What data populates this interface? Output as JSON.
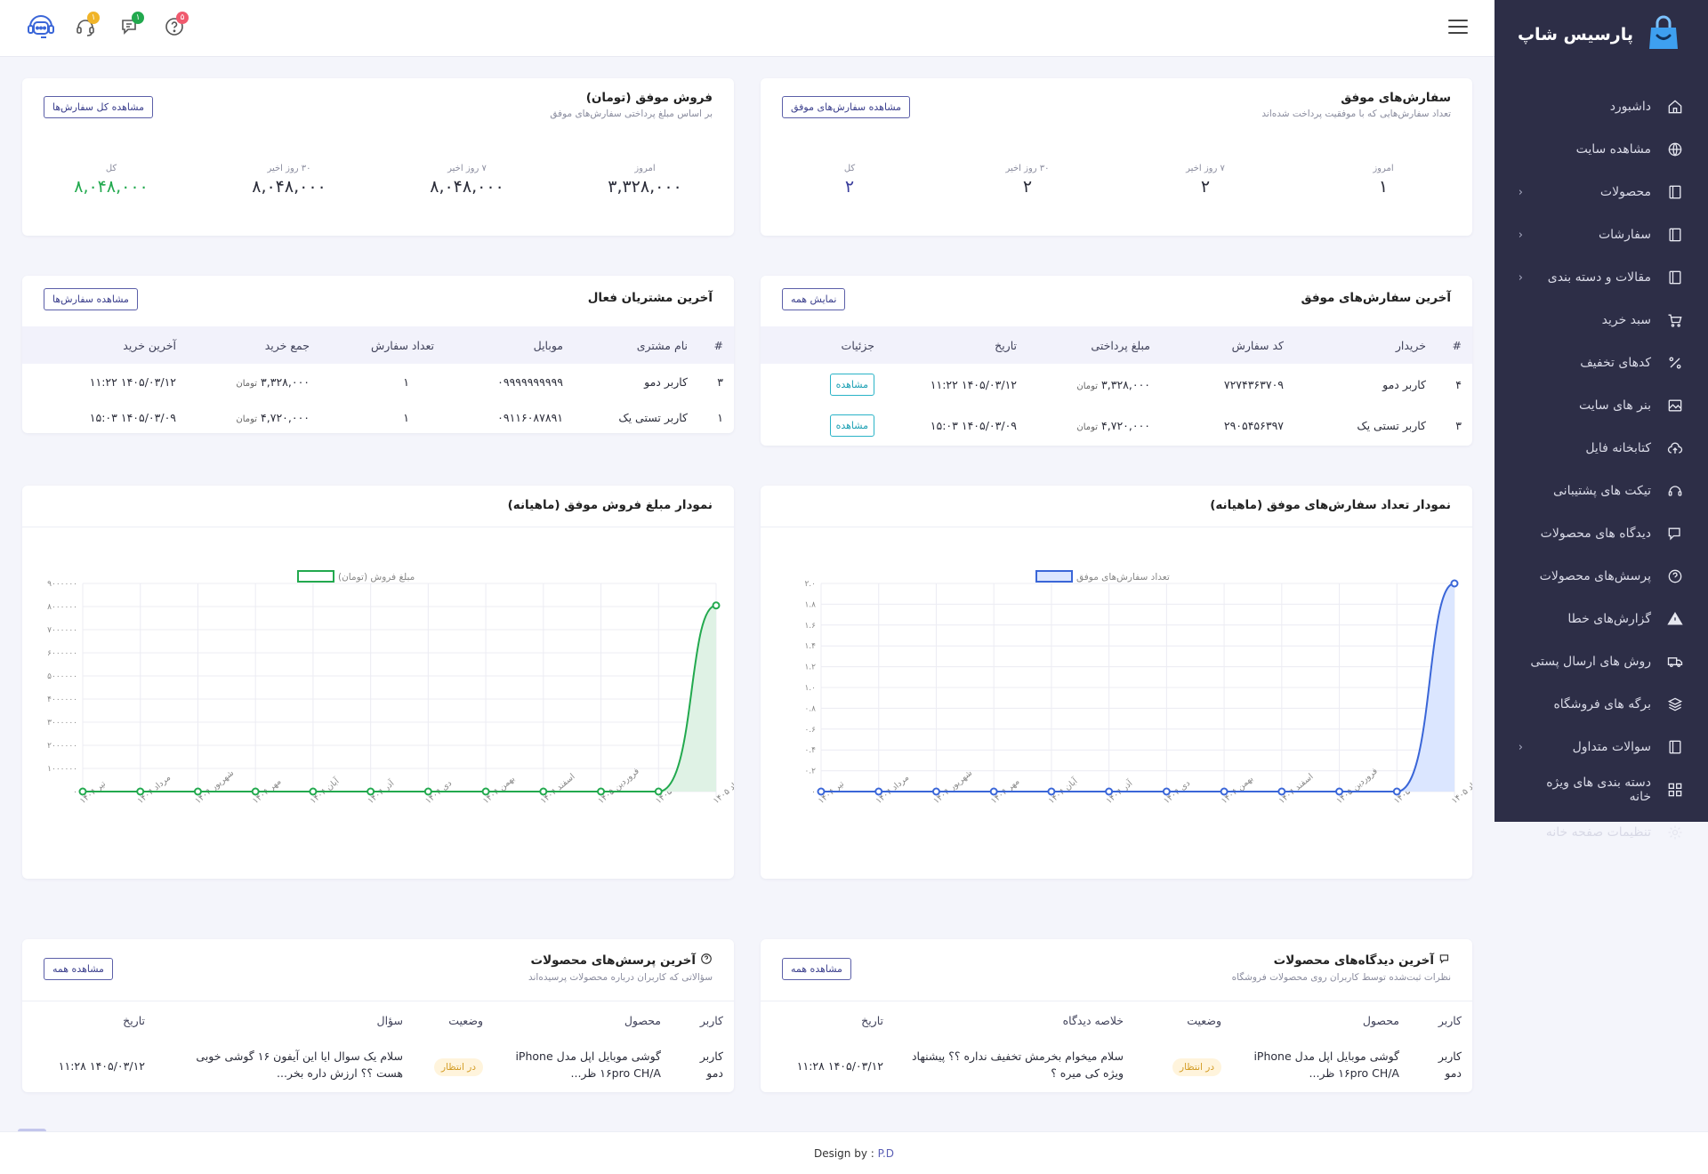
{
  "brand": {
    "name": "پارسیس شاپ"
  },
  "colors": {
    "sidebar": "#2d2e47",
    "accent": "#5b5fa8",
    "green": "#22a94e",
    "blue": "#3a66d8"
  },
  "topbar": {
    "badges": [
      "۱",
      "۱",
      "۵"
    ]
  },
  "sidebar": {
    "items": [
      {
        "label": "داشبورد",
        "icon": "home-icon",
        "chevron": false
      },
      {
        "label": "مشاهده سایت",
        "icon": "globe-icon",
        "chevron": false
      },
      {
        "label": "محصولات",
        "icon": "book-icon",
        "chevron": true
      },
      {
        "label": "سفارشات",
        "icon": "book-icon",
        "chevron": true
      },
      {
        "label": "مقالات و دسته بندی",
        "icon": "book-icon",
        "chevron": true
      },
      {
        "label": "سبد خرید",
        "icon": "cart-icon",
        "chevron": false
      },
      {
        "label": "کدهای تخفیف",
        "icon": "percent-icon",
        "chevron": false
      },
      {
        "label": "بنر های سایت",
        "icon": "image-icon",
        "chevron": false
      },
      {
        "label": "کتابخانه فایل",
        "icon": "cloud-upload-icon",
        "chevron": false
      },
      {
        "label": "تیکت های پشتیبانی",
        "icon": "headset-icon",
        "chevron": false
      },
      {
        "label": "دیدگاه های محصولات",
        "icon": "comment-icon",
        "chevron": false
      },
      {
        "label": "پرسش‌های محصولات",
        "icon": "question-icon",
        "chevron": false
      },
      {
        "label": "گزارش‌های خطا",
        "icon": "warning-icon",
        "chevron": false
      },
      {
        "label": "روش های ارسال پستی",
        "icon": "truck-icon",
        "chevron": false
      },
      {
        "label": "برگه های فروشگاه",
        "icon": "layers-icon",
        "chevron": false
      },
      {
        "label": "سوالات متداول",
        "icon": "book-icon",
        "chevron": true
      },
      {
        "label": "دسته بندی های ویژه خانه",
        "icon": "grid-icon",
        "chevron": false
      },
      {
        "label": "تنظیمات صفحه خانه",
        "icon": "gear-icon",
        "chevron": false
      }
    ]
  },
  "orders_summary": {
    "title": "سفارش‌های موفق",
    "subtitle": "تعداد سفارش‌هایی که با موفقیت پرداخت شده‌اند",
    "button": "مشاهده سفارش‌های موفق",
    "stats": [
      {
        "label": "امروز",
        "value": "۱"
      },
      {
        "label": "۷ روز اخیر",
        "value": "۲"
      },
      {
        "label": "۳۰ روز اخیر",
        "value": "۲"
      },
      {
        "label": "کل",
        "value": "۲"
      }
    ]
  },
  "sales_summary": {
    "title": "فروش موفق (تومان)",
    "subtitle": "بر اساس مبلغ پرداختی سفارش‌های موفق",
    "button": "مشاهده کل سفارش‌ها",
    "stats": [
      {
        "label": "امروز",
        "value": "۳,۳۲۸,۰۰۰"
      },
      {
        "label": "۷ روز اخیر",
        "value": "۸,۰۴۸,۰۰۰"
      },
      {
        "label": "۳۰ روز اخیر",
        "value": "۸,۰۴۸,۰۰۰"
      },
      {
        "label": "کل",
        "value": "۸,۰۴۸,۰۰۰"
      }
    ]
  },
  "latest_orders": {
    "title": "آخرین سفارش‌های موفق",
    "button": "نمایش همه",
    "headers": [
      "#",
      "خریدار",
      "کد سفارش",
      "مبلغ پرداختی",
      "تاریخ",
      "جزئیات"
    ],
    "currency": "تومان",
    "details_label": "مشاهده",
    "rows": [
      {
        "num": "۴",
        "buyer": "کاربر دمو",
        "code": "۷۲۷۴۳۶۳۷۰۹",
        "amount": "۳,۳۲۸,۰۰۰",
        "date": "۱۴۰۵/۰۳/۱۲ ۱۱:۲۲"
      },
      {
        "num": "۳",
        "buyer": "کاربر تستی یک",
        "code": "۲۹۰۵۴۵۶۳۹۷",
        "amount": "۴,۷۲۰,۰۰۰",
        "date": "۱۴۰۵/۰۳/۰۹ ۱۵:۰۳"
      }
    ]
  },
  "active_customers": {
    "title": "آخرین مشتریان فعال",
    "button": "مشاهده سفارش‌ها",
    "headers": [
      "#",
      "نام مشتری",
      "موبایل",
      "تعداد سفارش",
      "جمع خرید",
      "آخرین خرید"
    ],
    "currency": "تومان",
    "rows": [
      {
        "num": "۳",
        "name": "کاربر دمو",
        "mobile": "۰۹۹۹۹۹۹۹۹۹۹",
        "count": "۱",
        "total": "۳,۳۲۸,۰۰۰",
        "last": "۱۴۰۵/۰۳/۱۲ ۱۱:۲۲"
      },
      {
        "num": "۱",
        "name": "کاربر تستی یک",
        "mobile": "۰۹۱۱۶۰۸۷۸۹۱",
        "count": "۱",
        "total": "۴,۷۲۰,۰۰۰",
        "last": "۱۴۰۵/۰۳/۰۹ ۱۵:۰۳"
      }
    ]
  },
  "chart_data": [
    {
      "type": "area",
      "title": "نمودار تعداد سفارش‌های موفق (ماهیانه)",
      "color": "#3a66d8",
      "fill": "#dbe6ff",
      "x": [
        "تیر ۱۴۰۴",
        "مرداد ۱۴۰۴",
        "شهریور ۱۴۰۴",
        "مهر ۱۴۰۴",
        "آبان ۱۴۰۴",
        "آذر ۱۴۰۴",
        "دی ۱۴۰۴",
        "بهمن ۱۴۰۴",
        "اسفند ۱۴۰۴",
        "فروردین ۱۴۰۵",
        "اردیبهشت ۱۴۰۵",
        "خرداد ۱۴۰۵"
      ],
      "series": [
        {
          "name": "تعداد سفارش‌های موفق",
          "values": [
            0,
            0,
            0,
            0,
            0,
            0,
            0,
            0,
            0,
            0,
            0,
            2
          ]
        }
      ],
      "ylim": [
        0,
        2
      ],
      "yticks": [
        0,
        0.2,
        0.4,
        0.6,
        0.8,
        1.0,
        1.2,
        1.4,
        1.6,
        1.8,
        2.0
      ],
      "ytick_labels": [
        "۰",
        "۰.۲",
        "۰.۴",
        "۰.۶",
        "۰.۸",
        "۱.۰",
        "۱.۲",
        "۱.۴",
        "۱.۶",
        "۱.۸",
        "۲.۰"
      ],
      "grid": true,
      "legend": "top-center",
      "show_points": true,
      "legend_box_fill": "#dbe6ff"
    },
    {
      "type": "area",
      "title": "نمودار مبلغ فروش موفق (ماهیانه)",
      "color": "#22a94e",
      "fill": "#dff2e5",
      "x": [
        "تیر ۱۴۰۴",
        "مرداد ۱۴۰۴",
        "شهریور ۱۴۰۴",
        "مهر ۱۴۰۴",
        "آبان ۱۴۰۴",
        "آذر ۱۴۰۴",
        "دی ۱۴۰۴",
        "بهمن ۱۴۰۴",
        "اسفند ۱۴۰۴",
        "فروردین ۱۴۰۵",
        "اردیبهشت ۱۴۰۵",
        "خرداد ۱۴۰۵"
      ],
      "series": [
        {
          "name": "مبلغ فروش (تومان)",
          "values": [
            0,
            0,
            0,
            0,
            0,
            0,
            0,
            0,
            0,
            0,
            0,
            8048000
          ]
        }
      ],
      "ylim": [
        0,
        9000000
      ],
      "yticks": [
        0,
        1000000,
        2000000,
        3000000,
        4000000,
        5000000,
        6000000,
        7000000,
        8000000,
        9000000
      ],
      "ytick_labels": [
        "۰",
        "۱۰۰۰۰۰۰",
        "۲۰۰۰۰۰۰",
        "۳۰۰۰۰۰۰",
        "۴۰۰۰۰۰۰",
        "۵۰۰۰۰۰۰",
        "۶۰۰۰۰۰۰",
        "۷۰۰۰۰۰۰",
        "۸۰۰۰۰۰۰",
        "۹۰۰۰۰۰۰"
      ],
      "grid": true,
      "legend": "top-center",
      "show_points": true,
      "legend_box_fill": "#ffffff"
    }
  ],
  "latest_reviews": {
    "title": "آخرین دیدگاه‌های محصولات",
    "subtitle": "نظرات ثبت‌شده توسط کاربران روی محصولات فروشگاه",
    "button": "مشاهده همه",
    "headers": [
      "کاربر",
      "محصول",
      "وضعیت",
      "خلاصه دیدگاه",
      "تاریخ"
    ],
    "rows": [
      {
        "user": "کاربر دمو",
        "product": "گوشی موبایل اپل مدل iPhone ۱۶pro CH/A ظر...",
        "status": "در انتظار",
        "summary": "سلام میخوام بخرمش تخفیف نداره ؟؟ پیشنهاد ویژه کی میره ؟",
        "date": "۱۴۰۵/۰۳/۱۲ ۱۱:۲۸"
      }
    ]
  },
  "latest_questions": {
    "title": "آخرین پرسش‌های محصولات",
    "subtitle": "سؤالاتی که کاربران درباره محصولات پرسیده‌اند",
    "button": "مشاهده همه",
    "headers": [
      "کاربر",
      "محصول",
      "وضعیت",
      "سؤال",
      "تاریخ"
    ],
    "rows": [
      {
        "user": "کاربر دمو",
        "product": "گوشی موبایل اپل مدل iPhone ۱۶pro CH/A ظر...",
        "status": "در انتظار",
        "question": "سلام یک سوال ایا این آیفون ۱۶ گوشی خوبی هست ؟؟ ارزش داره بخر...",
        "date": "۱۴۰۵/۰۳/۱۲ ۱۱:۲۸"
      }
    ]
  },
  "footer": {
    "prefix": "Design by : ",
    "author": "P.D"
  }
}
